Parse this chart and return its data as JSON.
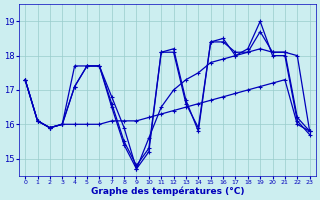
{
  "xlabel": "Graphe des températures (°C)",
  "bg_color": "#cceef0",
  "line_color": "#0000bb",
  "grid_color": "#99cccc",
  "ylim": [
    14.5,
    19.5
  ],
  "xlim": [
    -0.5,
    23.5
  ],
  "yticks": [
    15,
    16,
    17,
    18,
    19
  ],
  "xticks": [
    0,
    1,
    2,
    3,
    4,
    5,
    6,
    7,
    8,
    9,
    10,
    11,
    12,
    13,
    14,
    15,
    16,
    17,
    18,
    19,
    20,
    21,
    22,
    23
  ],
  "series": [
    {
      "comment": "line1: starts high at 0 ~17.3, drops to ~16.1 at 1, ~15.9 at 2, flat ~16 at 3, rises to ~17.1 at 4, ~17.7 at 5-6, down to ~16.6 at 7, ~15.5 at 8, ~14.8 at 9, then rises steeply to ~18.1 at 11, peak ~18.2 at 12, down ~16.7 at 13, ~15.8 at 14, back up ~18.4 at 15, ~18.4 at 16, ~18.1 at 17, ~18.1 at 18, peak ~18.7 at 19, ~18.1 at 20, then drops ~16.2 at 22, ~15.8 at 23",
      "x": [
        0,
        1,
        2,
        3,
        4,
        5,
        6,
        7,
        8,
        9,
        10,
        11,
        12,
        13,
        14,
        15,
        16,
        17,
        18,
        19,
        20,
        21,
        22,
        23
      ],
      "y": [
        17.3,
        16.1,
        15.9,
        16.0,
        17.1,
        17.7,
        17.7,
        16.6,
        15.5,
        14.8,
        15.3,
        18.1,
        18.2,
        16.7,
        15.8,
        18.4,
        18.4,
        18.1,
        18.1,
        18.7,
        18.1,
        18.1,
        16.2,
        15.8
      ]
    },
    {
      "x": [
        0,
        1,
        2,
        3,
        4,
        5,
        6,
        7,
        8,
        9,
        10,
        11,
        12,
        13,
        14,
        15,
        16,
        17,
        18,
        19,
        20,
        21,
        22,
        23
      ],
      "y": [
        17.3,
        16.1,
        15.9,
        16.0,
        17.7,
        17.7,
        17.7,
        16.5,
        15.4,
        14.7,
        15.6,
        16.5,
        17.0,
        17.3,
        17.5,
        17.8,
        17.9,
        18.0,
        18.1,
        18.2,
        18.1,
        18.1,
        18.0,
        15.8
      ]
    },
    {
      "x": [
        0,
        1,
        2,
        3,
        4,
        5,
        6,
        7,
        8,
        9,
        10,
        11,
        12,
        13,
        14,
        15,
        16,
        17,
        18,
        19,
        20,
        21,
        22,
        23
      ],
      "y": [
        17.3,
        16.1,
        15.9,
        16.0,
        17.1,
        17.7,
        17.7,
        16.8,
        15.9,
        14.7,
        15.2,
        18.1,
        18.1,
        16.6,
        15.9,
        18.4,
        18.5,
        18.0,
        18.2,
        19.0,
        18.0,
        18.0,
        16.1,
        15.7
      ]
    },
    {
      "x": [
        0,
        1,
        2,
        3,
        4,
        5,
        6,
        7,
        8,
        9,
        10,
        11,
        12,
        13,
        14,
        15,
        16,
        17,
        18,
        19,
        20,
        21,
        22,
        23
      ],
      "y": [
        17.3,
        16.1,
        15.9,
        16.0,
        16.0,
        16.0,
        16.0,
        16.1,
        16.1,
        16.1,
        16.2,
        16.3,
        16.4,
        16.5,
        16.6,
        16.7,
        16.8,
        16.9,
        17.0,
        17.1,
        17.2,
        17.3,
        16.0,
        15.8
      ]
    }
  ]
}
